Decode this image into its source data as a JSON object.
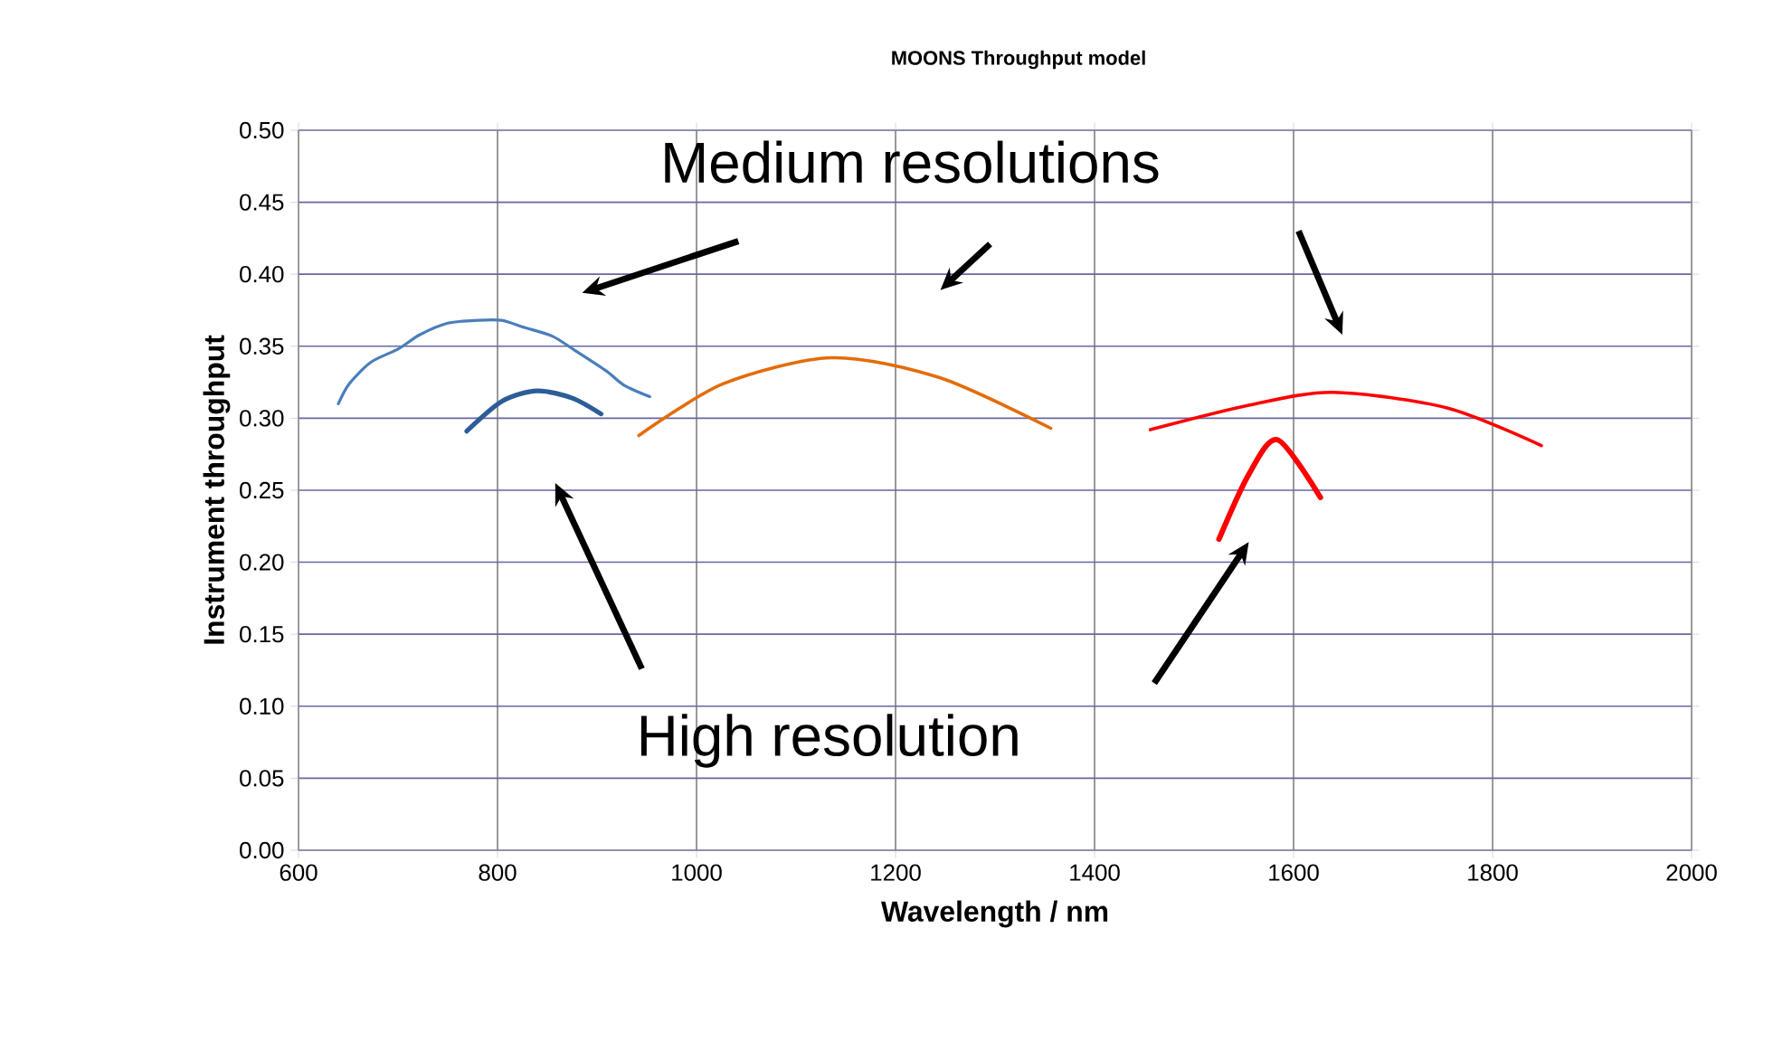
{
  "chart_data": {
    "type": "line",
    "title": "MOONS Throughput model",
    "xlabel": "Wavelength / nm",
    "ylabel": "Instrument throughput",
    "annotations": [
      "Medium resolutions",
      "High resolution"
    ],
    "xlim": [
      600,
      2000
    ],
    "ylim": [
      0,
      0.5
    ],
    "xticks": [
      600,
      800,
      1000,
      1200,
      1400,
      1600,
      1800,
      2000
    ],
    "yticks": [
      {
        "value": 0,
        "label": "0.00"
      },
      {
        "value": 0.05,
        "label": "0.05"
      },
      {
        "value": 0.1,
        "label": "0.10"
      },
      {
        "value": 0.15,
        "label": "0.15"
      },
      {
        "value": 0.2,
        "label": "0.20"
      },
      {
        "value": 0.25,
        "label": "0.25"
      },
      {
        "value": 0.3,
        "label": "0.30"
      },
      {
        "value": 0.35,
        "label": "0.35"
      },
      {
        "value": 0.4,
        "label": "0.40"
      },
      {
        "value": 0.45,
        "label": "0.45"
      },
      {
        "value": 0.5,
        "label": "0.50"
      }
    ],
    "grid": true,
    "series": [
      {
        "color": "#4a7ebb",
        "x": [
          640,
          651,
          673,
          700,
          722,
          750,
          780,
          804,
          827,
          855,
          878,
          909,
          927,
          953
        ],
        "values": [
          0.31,
          0.324,
          0.339,
          0.348,
          0.358,
          0.366,
          0.368,
          0.368,
          0.363,
          0.357,
          0.347,
          0.333,
          0.323,
          0.315
        ]
      },
      {
        "color": "#2c5d98",
        "x": [
          769,
          805,
          840,
          875,
          904
        ],
        "values": [
          0.291,
          0.312,
          0.319,
          0.314,
          0.303
        ]
      },
      {
        "color": "#e46c0a",
        "x": [
          942,
          1027,
          1136,
          1245,
          1356
        ],
        "values": [
          0.288,
          0.324,
          0.342,
          0.328,
          0.293
        ]
      },
      {
        "color": "#ff0000",
        "x": [
          1456,
          1555,
          1640,
          1755,
          1849
        ],
        "values": [
          0.292,
          0.309,
          0.318,
          0.307,
          0.281
        ]
      },
      {
        "color": "#ff0000",
        "x": [
          1525,
          1555,
          1584,
          1627
        ],
        "values": [
          0.216,
          0.261,
          0.285,
          0.245
        ]
      }
    ]
  }
}
